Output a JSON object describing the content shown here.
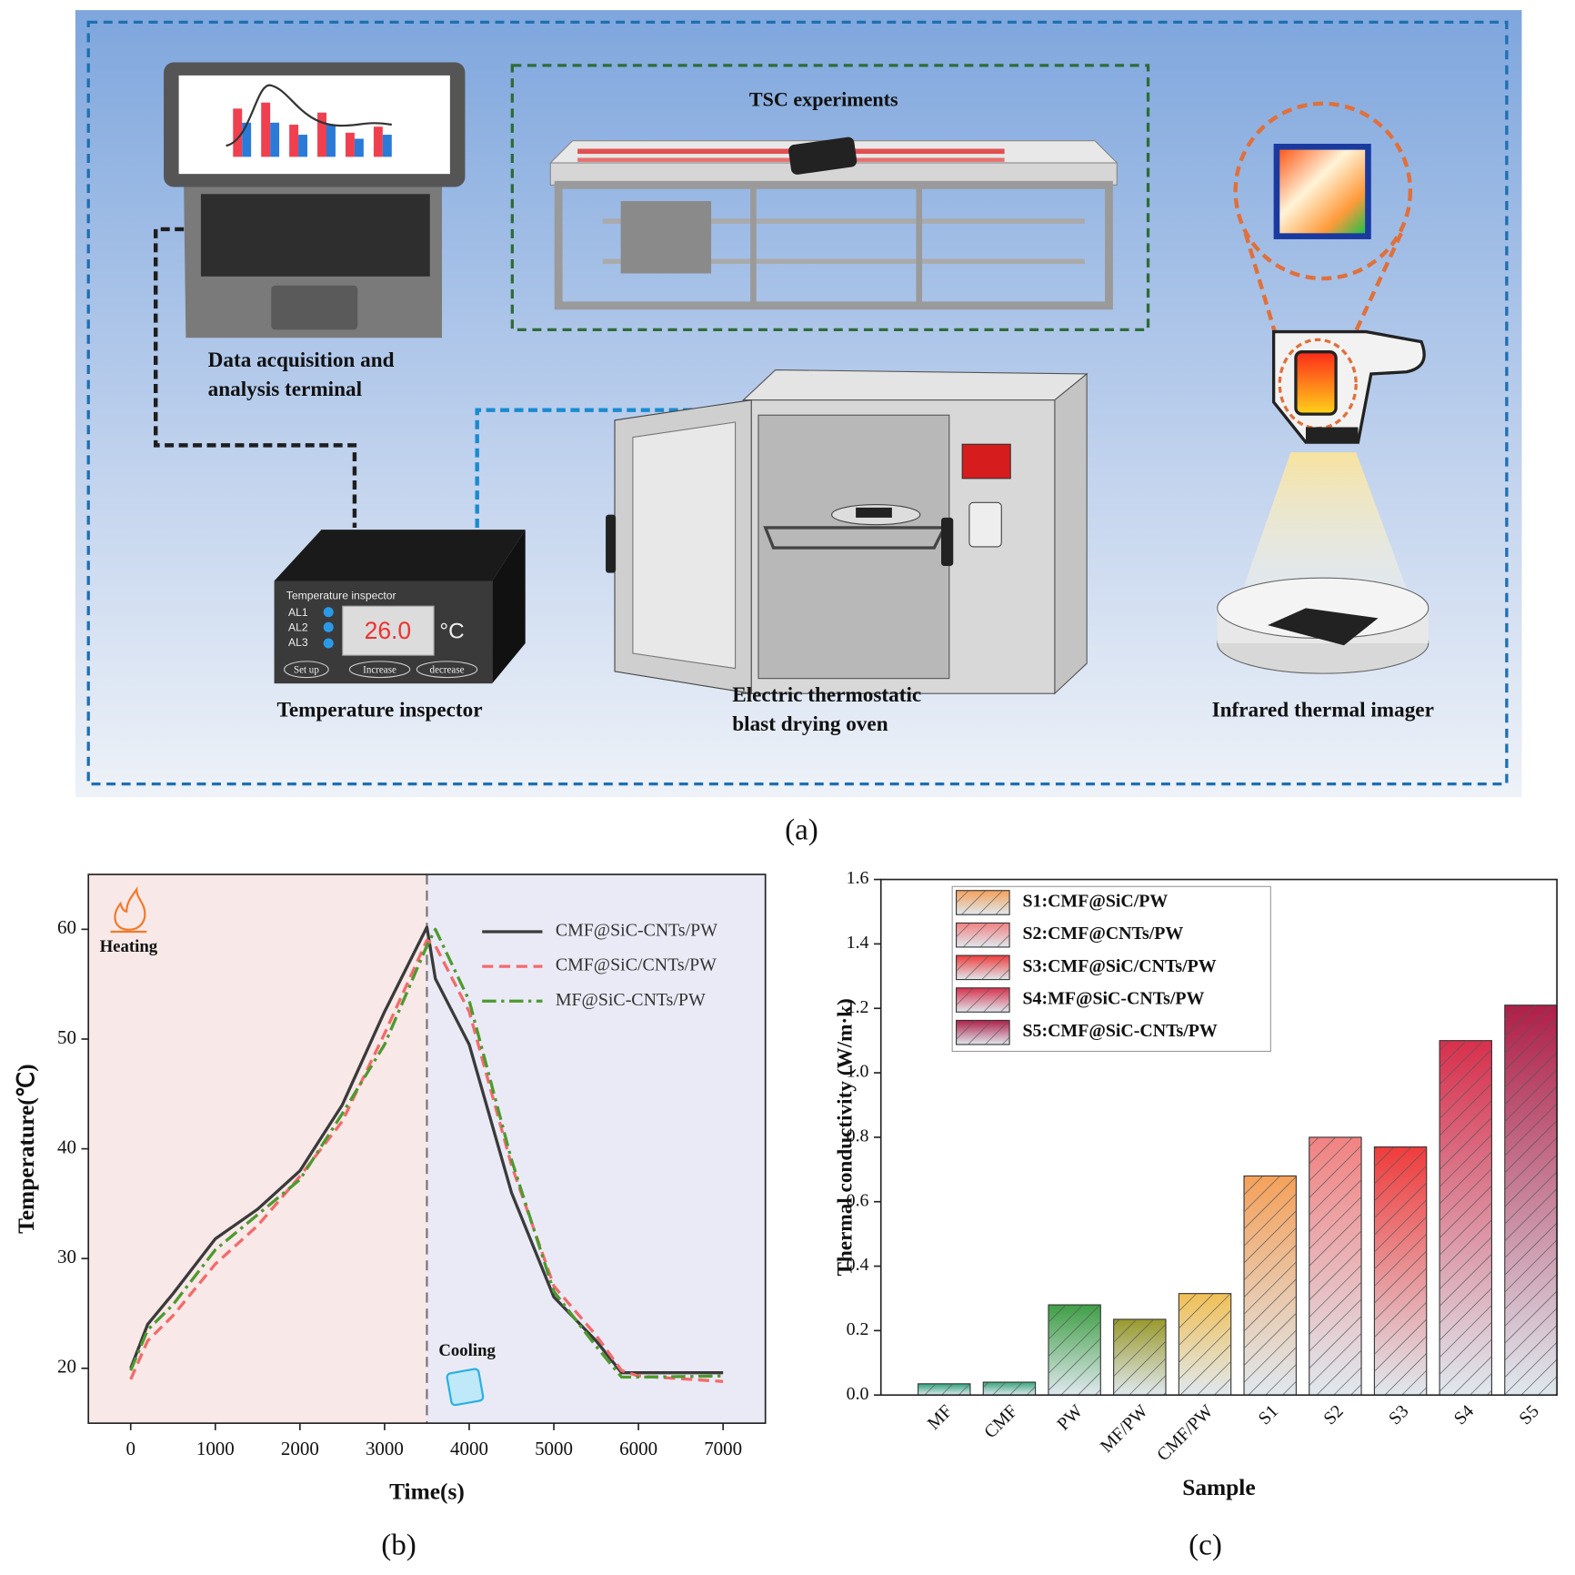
{
  "diagram": {
    "tsc_title": "TSC experiments",
    "terminal_label": [
      "Data acquisition and",
      "analysis terminal"
    ],
    "inspector": {
      "screen_title": "Temperature inspector",
      "alarms": [
        "AL1",
        "AL2",
        "AL3"
      ],
      "reading": "26.0",
      "unit": "°C",
      "buttons": [
        "Set up",
        "Increase",
        "decrease"
      ]
    },
    "inspector_label": "Temperature inspector",
    "oven_label": [
      "Electric thermostatic",
      "blast drying oven"
    ],
    "imager_label": "Infrared thermal imager"
  },
  "panel_labels": [
    "(a)",
    "(b)",
    "(c)"
  ],
  "chart_data": [
    {
      "type": "line",
      "x_label": "Time(s)",
      "y_label": "Temperature(℃)",
      "x": [
        0,
        200,
        500,
        1000,
        1500,
        2000,
        2500,
        3000,
        3500,
        3600,
        4000,
        4500,
        5000,
        5500,
        5800,
        6000,
        7000
      ],
      "series": [
        {
          "name": "CMF@SiC-CNTs/PW",
          "color": "#3a3a3a",
          "dash": "solid",
          "values": [
            20,
            24,
            26.8,
            31.8,
            34.5,
            38,
            44,
            52.5,
            60.2,
            55.5,
            49.5,
            36,
            26.5,
            22.5,
            19.6,
            19.6,
            19.6
          ]
        },
        {
          "name": "CMF@SiC/CNTs/PW",
          "color": "#f26b6b",
          "dash": "dashed",
          "values": [
            19,
            22.5,
            24.8,
            29.5,
            33,
            37.5,
            42.5,
            50.5,
            59,
            58.5,
            52.5,
            38.5,
            27.5,
            23,
            19.8,
            19.3,
            18.8
          ]
        },
        {
          "name": "MF@SiC-CNTs/PW",
          "color": "#4d9a2e",
          "dash": "dashdot",
          "values": [
            19.8,
            23.5,
            25.8,
            30.8,
            34,
            37.2,
            43.2,
            49.5,
            58.5,
            60,
            53.5,
            39,
            27,
            22,
            19.2,
            19.2,
            19.3
          ]
        }
      ],
      "xlim": [
        -500,
        7500
      ],
      "ylim": [
        15,
        65
      ],
      "xticks": [
        0,
        1000,
        2000,
        3000,
        4000,
        5000,
        6000,
        7000
      ],
      "yticks": [
        20,
        30,
        40,
        50,
        60
      ],
      "phase_boundary": 3500,
      "phases": [
        {
          "label": "Heating",
          "color": "#f8e8e8"
        },
        {
          "label": "Cooling",
          "color": "#eaeaf6"
        }
      ],
      "legend": "upper right"
    },
    {
      "type": "bar",
      "x_label": "Sample",
      "y_label": "Thermal conductivity (W/m·k)",
      "categories": [
        "MF",
        "CMF",
        "PW",
        "MF/PW",
        "CMF/PW",
        "S1",
        "S2",
        "S3",
        "S4",
        "S5"
      ],
      "values": [
        0.035,
        0.04,
        0.28,
        0.235,
        0.315,
        0.68,
        0.8,
        0.77,
        1.1,
        1.21
      ],
      "colors": [
        "#2fa37c",
        "#38a57a",
        "#3f9f45",
        "#9a9a2c",
        "#f1c056",
        "#f5a15a",
        "#f28282",
        "#f03c3c",
        "#d8304c",
        "#b01f48"
      ],
      "ylim": [
        0,
        1.6
      ],
      "yticks": [
        {
          "value": 0,
          "label": "0.0"
        },
        0.2,
        0.4,
        0.6,
        0.8,
        {
          "value": 1,
          "label": "1.0"
        },
        1.2,
        1.4,
        1.6
      ],
      "hatch": true,
      "legend": [
        {
          "label": "S1:CMF@SiC/PW",
          "color": "#f5a15a"
        },
        {
          "label": "S2:CMF@CNTs/PW",
          "color": "#f28282"
        },
        {
          "label": "S3:CMF@SiC/CNTs/PW",
          "color": "#f03c3c"
        },
        {
          "label": "S4:MF@SiC-CNTs/PW",
          "color": "#d8304c"
        },
        {
          "label": "S5:CMF@SiC-CNTs/PW",
          "color": "#b01f48"
        }
      ],
      "legend_position": "upper left"
    }
  ]
}
